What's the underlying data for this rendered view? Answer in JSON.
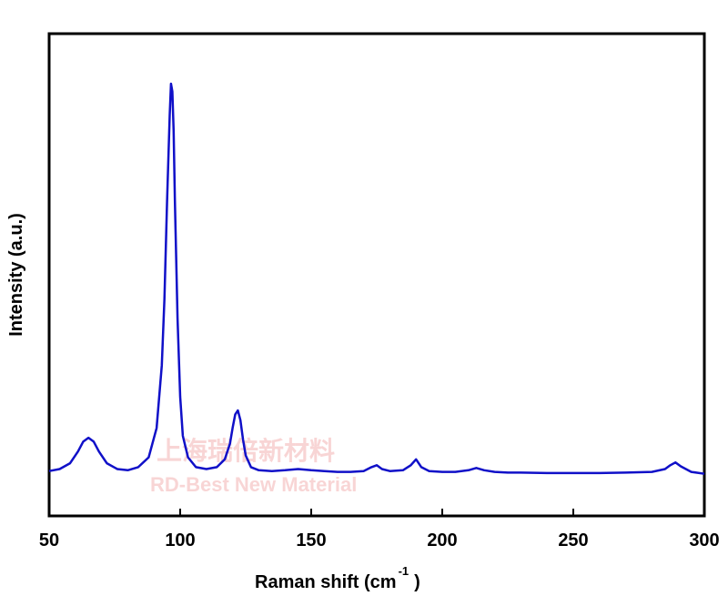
{
  "chart_data": {
    "type": "line",
    "title": "",
    "xlabel": "Raman shift (cm",
    "xlabel_sup": "-1",
    "xlabel_close": ")",
    "ylabel": "Intensity (a.u.)",
    "xlim": [
      50,
      300
    ],
    "ylim": [
      0,
      1.12
    ],
    "xticks": [
      50,
      100,
      150,
      200,
      250,
      300
    ],
    "yticks_shown": false,
    "grid": false,
    "legend": "none",
    "line_color": "#1010c8",
    "series": [
      {
        "x": [
          50,
          54,
          58,
          61,
          63,
          65,
          67,
          69,
          72,
          76,
          80,
          84,
          88,
          91,
          93,
          94,
          95,
          96,
          96.5,
          97,
          97.5,
          98,
          99,
          100,
          101,
          103,
          106,
          110,
          114,
          117,
          119,
          120,
          121,
          122,
          123,
          124,
          125,
          127,
          130,
          135,
          140,
          145,
          150,
          155,
          160,
          165,
          170,
          173,
          175,
          177,
          180,
          185,
          188,
          190,
          192,
          195,
          200,
          205,
          210,
          213,
          216,
          220,
          225,
          230,
          240,
          250,
          260,
          270,
          280,
          285,
          287,
          289,
          291,
          295,
          300
        ],
        "y": [
          0.01,
          0.015,
          0.03,
          0.06,
          0.085,
          0.095,
          0.085,
          0.06,
          0.03,
          0.015,
          0.012,
          0.02,
          0.045,
          0.12,
          0.28,
          0.45,
          0.7,
          0.92,
          1.0,
          0.98,
          0.88,
          0.7,
          0.4,
          0.2,
          0.1,
          0.045,
          0.02,
          0.015,
          0.02,
          0.04,
          0.08,
          0.12,
          0.155,
          0.165,
          0.14,
          0.09,
          0.05,
          0.02,
          0.012,
          0.01,
          0.012,
          0.015,
          0.012,
          0.01,
          0.008,
          0.008,
          0.01,
          0.02,
          0.025,
          0.015,
          0.01,
          0.012,
          0.025,
          0.04,
          0.02,
          0.01,
          0.008,
          0.008,
          0.012,
          0.018,
          0.012,
          0.008,
          0.006,
          0.006,
          0.005,
          0.005,
          0.005,
          0.006,
          0.008,
          0.015,
          0.025,
          0.032,
          0.022,
          0.008,
          0.003
        ]
      }
    ]
  },
  "watermark": {
    "cn": "上海瑞倍新材料",
    "en": "RD-Best New Material"
  }
}
